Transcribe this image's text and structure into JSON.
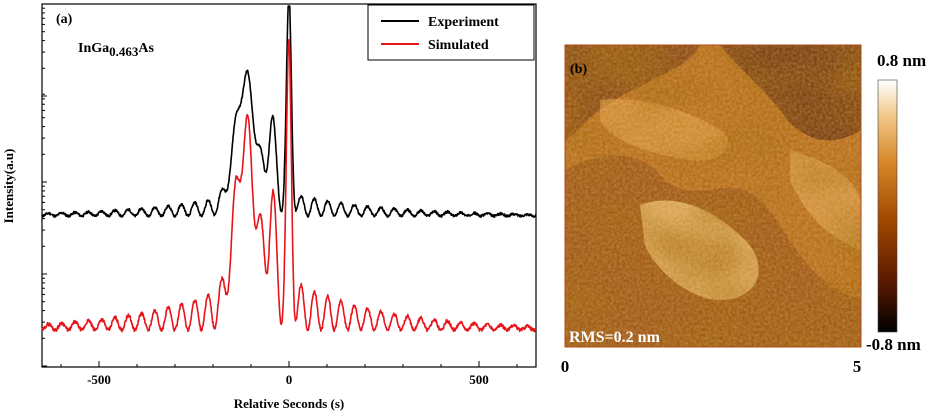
{
  "chart_data": [
    {
      "type": "line",
      "panel_label": "(a)",
      "annotation": "InGa",
      "annotation_sub": "0.463",
      "annotation_tail": "As",
      "xlabel": "Relative Seconds (s)",
      "ylabel": "Intensity(a.u)",
      "xlim": [
        -650,
        650
      ],
      "xticks": [
        -500,
        0,
        500
      ],
      "yscale": "log",
      "yticks_shown": false,
      "legend_position": "top-right",
      "series": [
        {
          "name": "Experiment",
          "color": "#000000",
          "description": "HRXRD rocking curve with substrate peak near 0 s and layer peak near -115 s, Pendellosung fringes on both sides",
          "peaks": [
            {
              "x": 0,
              "rel_intensity": 1.0
            },
            {
              "x": -115,
              "rel_intensity": 0.62
            },
            {
              "x": -45,
              "rel_intensity": 0.38
            }
          ],
          "fringe_period_s": 35,
          "background_left": 0.12,
          "background_right": 0.12
        },
        {
          "name": "Simulated",
          "color": "#e8141b",
          "description": "Simulated rocking curve, offset downward, deeper fringes",
          "peaks": [
            {
              "x": 0,
              "rel_intensity": 0.85
            },
            {
              "x": -115,
              "rel_intensity": 0.58
            },
            {
              "x": -45,
              "rel_intensity": 0.3
            }
          ],
          "fringe_period_s": 35,
          "background_left": 0.02,
          "background_right": 0.01
        }
      ]
    },
    {
      "type": "heatmap",
      "panel_label": "(b)",
      "description": "AFM surface topography image",
      "annotation": "RMS=0.2 nm",
      "xlim": [
        0,
        5
      ],
      "xticks": [
        "0",
        "5"
      ],
      "colorbar": {
        "max_label": "0.8 nm",
        "min_label": "-0.8 nm",
        "range": [
          -0.8,
          0.8
        ],
        "colors": [
          "#000000",
          "#5a1a00",
          "#a24a00",
          "#d88a2a",
          "#f1c98a",
          "#ffffff"
        ]
      }
    }
  ]
}
